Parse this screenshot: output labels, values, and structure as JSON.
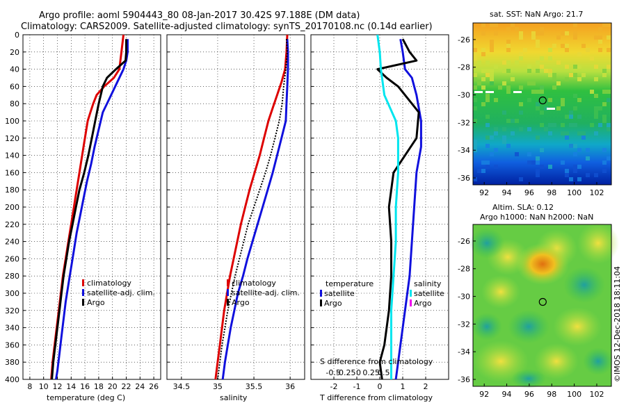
{
  "header": {
    "line1": "Argo profile: aoml 5904443_80 08-Jan-2017 30.42S 97.188E (DM data)",
    "line2": "Climatology: CARS2009. Satellite-adjusted climatology: synTS_20170108.nc (0.14d earlier)"
  },
  "stamp": "©IMOS 12-Dec-2018 18:11:04",
  "colors": {
    "climatology": "#dd0000",
    "satellite": "#1010dd",
    "argo": "#000000",
    "sat_salinity": "#00e5ee",
    "argo_salinity": "#ee00ee",
    "marker": "#000000"
  },
  "chart_data": [
    {
      "type": "line",
      "id": "temperature",
      "xlabel": "temperature (deg C)",
      "ylabel": "",
      "xlim": [
        7,
        27
      ],
      "ylim": [
        400,
        0
      ],
      "xticks": [
        8,
        10,
        12,
        14,
        16,
        18,
        20,
        22,
        24,
        26
      ],
      "yticks": [
        0,
        20,
        40,
        60,
        80,
        100,
        120,
        140,
        160,
        180,
        200,
        220,
        240,
        260,
        280,
        300,
        320,
        340,
        360,
        380,
        400
      ],
      "legend": [
        "climatology",
        "satellite-adj. clim.",
        "Argo"
      ],
      "series": [
        {
          "name": "climatology",
          "color": "#dd0000",
          "points": [
            [
              21.6,
              0
            ],
            [
              21.3,
              20
            ],
            [
              21.0,
              40
            ],
            [
              20.2,
              50
            ],
            [
              18.8,
              60
            ],
            [
              17.7,
              70
            ],
            [
              17.2,
              80
            ],
            [
              16.8,
              90
            ],
            [
              16.4,
              100
            ],
            [
              16.0,
              120
            ],
            [
              15.6,
              140
            ],
            [
              15.2,
              160
            ],
            [
              14.8,
              180
            ],
            [
              14.4,
              200
            ],
            [
              14.0,
              220
            ],
            [
              13.6,
              240
            ],
            [
              13.2,
              260
            ],
            [
              12.8,
              280
            ],
            [
              12.5,
              300
            ],
            [
              12.2,
              320
            ],
            [
              11.9,
              340
            ],
            [
              11.6,
              360
            ],
            [
              11.3,
              380
            ],
            [
              11.1,
              400
            ]
          ]
        },
        {
          "name": "satellite-adj. clim.",
          "color": "#1010dd",
          "points": [
            [
              22.2,
              5
            ],
            [
              22.2,
              20
            ],
            [
              22.0,
              30
            ],
            [
              21.6,
              40
            ],
            [
              20.7,
              55
            ],
            [
              19.5,
              75
            ],
            [
              18.6,
              90
            ],
            [
              18.0,
              110
            ],
            [
              17.4,
              130
            ],
            [
              16.9,
              150
            ],
            [
              16.3,
              170
            ],
            [
              15.8,
              190
            ],
            [
              15.3,
              210
            ],
            [
              14.8,
              230
            ],
            [
              14.4,
              250
            ],
            [
              14.0,
              270
            ],
            [
              13.6,
              290
            ],
            [
              13.2,
              310
            ],
            [
              12.9,
              330
            ],
            [
              12.6,
              350
            ],
            [
              12.3,
              370
            ],
            [
              12.0,
              390
            ],
            [
              11.8,
              400
            ]
          ]
        },
        {
          "name": "Argo",
          "color": "#000000",
          "points": [
            [
              22.0,
              5
            ],
            [
              22.0,
              20
            ],
            [
              21.9,
              30
            ],
            [
              20.5,
              40
            ],
            [
              19.2,
              50
            ],
            [
              18.6,
              60
            ],
            [
              18.0,
              80
            ],
            [
              17.5,
              100
            ],
            [
              17.0,
              120
            ],
            [
              16.5,
              140
            ],
            [
              15.9,
              160
            ],
            [
              15.2,
              180
            ],
            [
              14.7,
              200
            ],
            [
              14.2,
              220
            ],
            [
              13.7,
              240
            ],
            [
              13.3,
              260
            ],
            [
              12.9,
              280
            ],
            [
              12.6,
              300
            ],
            [
              12.3,
              320
            ],
            [
              12.0,
              340
            ],
            [
              11.7,
              360
            ],
            [
              11.4,
              380
            ],
            [
              11.2,
              400
            ]
          ]
        }
      ]
    },
    {
      "type": "line",
      "id": "salinity",
      "xlabel": "salinity",
      "ylabel": "",
      "xlim": [
        34.3,
        36.2
      ],
      "ylim": [
        400,
        0
      ],
      "xticks": [
        34.5,
        35,
        35.5,
        36
      ],
      "xticklabels": [
        "34.5",
        "35",
        "35.5",
        "36"
      ],
      "legend": [
        "climatology",
        "satellite-adj. clim.",
        "Argo"
      ],
      "series": [
        {
          "name": "climatology",
          "color": "#dd0000",
          "points": [
            [
              35.96,
              0
            ],
            [
              35.95,
              20
            ],
            [
              35.93,
              40
            ],
            [
              35.88,
              55
            ],
            [
              35.82,
              70
            ],
            [
              35.76,
              85
            ],
            [
              35.7,
              100
            ],
            [
              35.64,
              120
            ],
            [
              35.58,
              140
            ],
            [
              35.51,
              160
            ],
            [
              35.44,
              180
            ],
            [
              35.38,
              200
            ],
            [
              35.32,
              220
            ],
            [
              35.27,
              240
            ],
            [
              35.22,
              260
            ],
            [
              35.17,
              280
            ],
            [
              35.13,
              300
            ],
            [
              35.09,
              320
            ],
            [
              35.06,
              340
            ],
            [
              35.03,
              360
            ],
            [
              35.0,
              380
            ],
            [
              34.97,
              400
            ]
          ]
        },
        {
          "name": "satellite-adj. clim.",
          "color": "#1010dd",
          "points": [
            [
              35.96,
              5
            ],
            [
              35.97,
              20
            ],
            [
              35.97,
              40
            ],
            [
              35.96,
              60
            ],
            [
              35.95,
              80
            ],
            [
              35.94,
              100
            ],
            [
              35.88,
              120
            ],
            [
              35.82,
              140
            ],
            [
              35.76,
              160
            ],
            [
              35.69,
              180
            ],
            [
              35.62,
              200
            ],
            [
              35.55,
              220
            ],
            [
              35.48,
              240
            ],
            [
              35.41,
              260
            ],
            [
              35.35,
              280
            ],
            [
              35.28,
              300
            ],
            [
              35.23,
              320
            ],
            [
              35.18,
              340
            ],
            [
              35.14,
              360
            ],
            [
              35.1,
              380
            ],
            [
              35.07,
              400
            ]
          ]
        },
        {
          "name": "Argo",
          "color": "#000000",
          "dotted": true,
          "points": [
            [
              35.95,
              5
            ],
            [
              35.96,
              20
            ],
            [
              35.94,
              40
            ],
            [
              35.91,
              60
            ],
            [
              35.89,
              80
            ],
            [
              35.85,
              100
            ],
            [
              35.79,
              120
            ],
            [
              35.73,
              140
            ],
            [
              35.66,
              160
            ],
            [
              35.58,
              180
            ],
            [
              35.5,
              200
            ],
            [
              35.42,
              220
            ],
            [
              35.36,
              240
            ],
            [
              35.3,
              260
            ],
            [
              35.24,
              280
            ],
            [
              35.19,
              300
            ],
            [
              35.14,
              320
            ],
            [
              35.1,
              340
            ],
            [
              35.06,
              360
            ],
            [
              35.03,
              380
            ],
            [
              35.0,
              400
            ]
          ]
        }
      ]
    },
    {
      "type": "line",
      "id": "difference",
      "xlabel": "T difference from climatology",
      "toplabel": "S difference from climatology",
      "xlim": [
        -3,
        3
      ],
      "ylim": [
        400,
        0
      ],
      "xticks": [
        -2,
        -1,
        0,
        1,
        2
      ],
      "xticklabels": [
        "-2",
        "-1",
        "0",
        "1",
        "2"
      ],
      "sticks": [
        -0.5,
        -0.25,
        0,
        0.25,
        0.5
      ],
      "sticklabels": [
        "-0.5",
        "-0.25",
        "0",
        "0.25",
        "0.5"
      ],
      "legend": {
        "temperature": [
          "satellite",
          "Argo"
        ],
        "salinity": [
          "satellite",
          "Argo"
        ]
      },
      "legend_titles": [
        "temperature",
        "salinity"
      ],
      "series": [
        {
          "name": "T satellite",
          "color": "#1010dd",
          "points": [
            [
              0.9,
              5
            ],
            [
              1.0,
              20
            ],
            [
              1.1,
              40
            ],
            [
              1.4,
              50
            ],
            [
              1.6,
              70
            ],
            [
              1.8,
              100
            ],
            [
              1.8,
              130
            ],
            [
              1.6,
              160
            ],
            [
              1.5,
              200
            ],
            [
              1.4,
              240
            ],
            [
              1.3,
              280
            ],
            [
              1.1,
              320
            ],
            [
              0.9,
              360
            ],
            [
              0.7,
              400
            ]
          ]
        },
        {
          "name": "T Argo",
          "color": "#000000",
          "points": [
            [
              1.0,
              5
            ],
            [
              1.3,
              20
            ],
            [
              1.6,
              30
            ],
            [
              -0.1,
              40
            ],
            [
              0.3,
              50
            ],
            [
              0.8,
              60
            ],
            [
              1.7,
              90
            ],
            [
              1.6,
              120
            ],
            [
              0.6,
              160
            ],
            [
              0.4,
              200
            ],
            [
              0.5,
              240
            ],
            [
              0.5,
              280
            ],
            [
              0.4,
              320
            ],
            [
              0.2,
              360
            ],
            [
              0.0,
              380
            ],
            [
              0.1,
              400
            ]
          ]
        },
        {
          "name": "S satellite",
          "color": "#00e5ee",
          "points": [
            [
              -0.1,
              0
            ],
            [
              0.0,
              20
            ],
            [
              0.05,
              40
            ],
            [
              0.2,
              70
            ],
            [
              0.7,
              100
            ],
            [
              0.8,
              120
            ],
            [
              0.8,
              140
            ],
            [
              0.8,
              160
            ],
            [
              0.7,
              200
            ],
            [
              0.7,
              240
            ],
            [
              0.6,
              280
            ],
            [
              0.5,
              320
            ],
            [
              0.5,
              360
            ],
            [
              0.5,
              400
            ]
          ]
        }
      ]
    },
    {
      "type": "heatmap",
      "id": "sst_map",
      "title": "sat. SST: NaN Argo: 21.7",
      "xlim": [
        91,
        103.3
      ],
      "ylim": [
        -36.5,
        -24.8
      ],
      "xticks": [
        92,
        94,
        96,
        98,
        100,
        102
      ],
      "yticks": [
        -26,
        -28,
        -30,
        -32,
        -34,
        -36
      ],
      "marker": [
        97.2,
        -30.4
      ]
    },
    {
      "type": "heatmap",
      "id": "sla_map",
      "title": "Altim. SLA: 0.12",
      "subtitle": "Argo h1000: NaN h2000: NaN",
      "xlim": [
        91,
        103.3
      ],
      "ylim": [
        -36.5,
        -24.8
      ],
      "xticks": [
        92,
        94,
        96,
        98,
        100,
        102
      ],
      "yticks": [
        -26,
        -28,
        -30,
        -32,
        -34,
        -36
      ],
      "marker": [
        97.2,
        -30.4
      ]
    }
  ]
}
